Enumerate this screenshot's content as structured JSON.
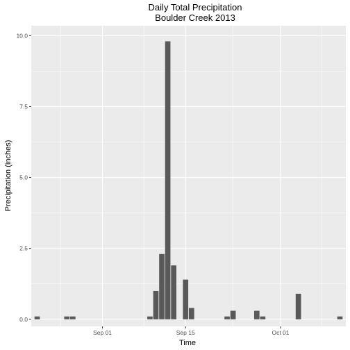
{
  "chart_data": {
    "type": "bar",
    "title_lines": [
      "Daily Total Precipitation",
      "Boulder Creek 2013"
    ],
    "xlabel": "Time",
    "ylabel": "Precipitation (inches)",
    "ylim": [
      -0.25,
      10.35
    ],
    "y_ticks": [
      0.0,
      2.5,
      5.0,
      7.5,
      10.0
    ],
    "y_tick_labels": [
      "0.0",
      "2.5",
      "5.0",
      "7.5",
      "10.0"
    ],
    "xlim": [
      "2013-08-20",
      "2013-10-12"
    ],
    "x_ticks": [
      "2013-09-01",
      "2013-09-15",
      "2013-10-01"
    ],
    "x_tick_labels": [
      "Sep 01",
      "Sep 15",
      "Oct 01"
    ],
    "x_minor_ticks": [
      "2013-08-25",
      "2013-09-08",
      "2013-09-23",
      "2013-10-08"
    ],
    "grid": true,
    "legend": "none",
    "bar_color": "#595959",
    "panel_color": "#ebebeb",
    "series": [
      {
        "x": [
          "2013-08-21",
          "2013-08-26",
          "2013-08-27",
          "2013-09-09",
          "2013-09-10",
          "2013-09-11",
          "2013-09-12",
          "2013-09-13",
          "2013-09-15",
          "2013-09-16",
          "2013-09-22",
          "2013-09-23",
          "2013-09-27",
          "2013-09-28",
          "2013-10-04",
          "2013-10-11"
        ],
        "values": [
          0.1,
          0.1,
          0.1,
          0.1,
          1.0,
          2.3,
          9.8,
          1.9,
          1.4,
          0.4,
          0.1,
          0.3,
          0.3,
          0.1,
          0.9,
          0.1
        ]
      }
    ]
  }
}
